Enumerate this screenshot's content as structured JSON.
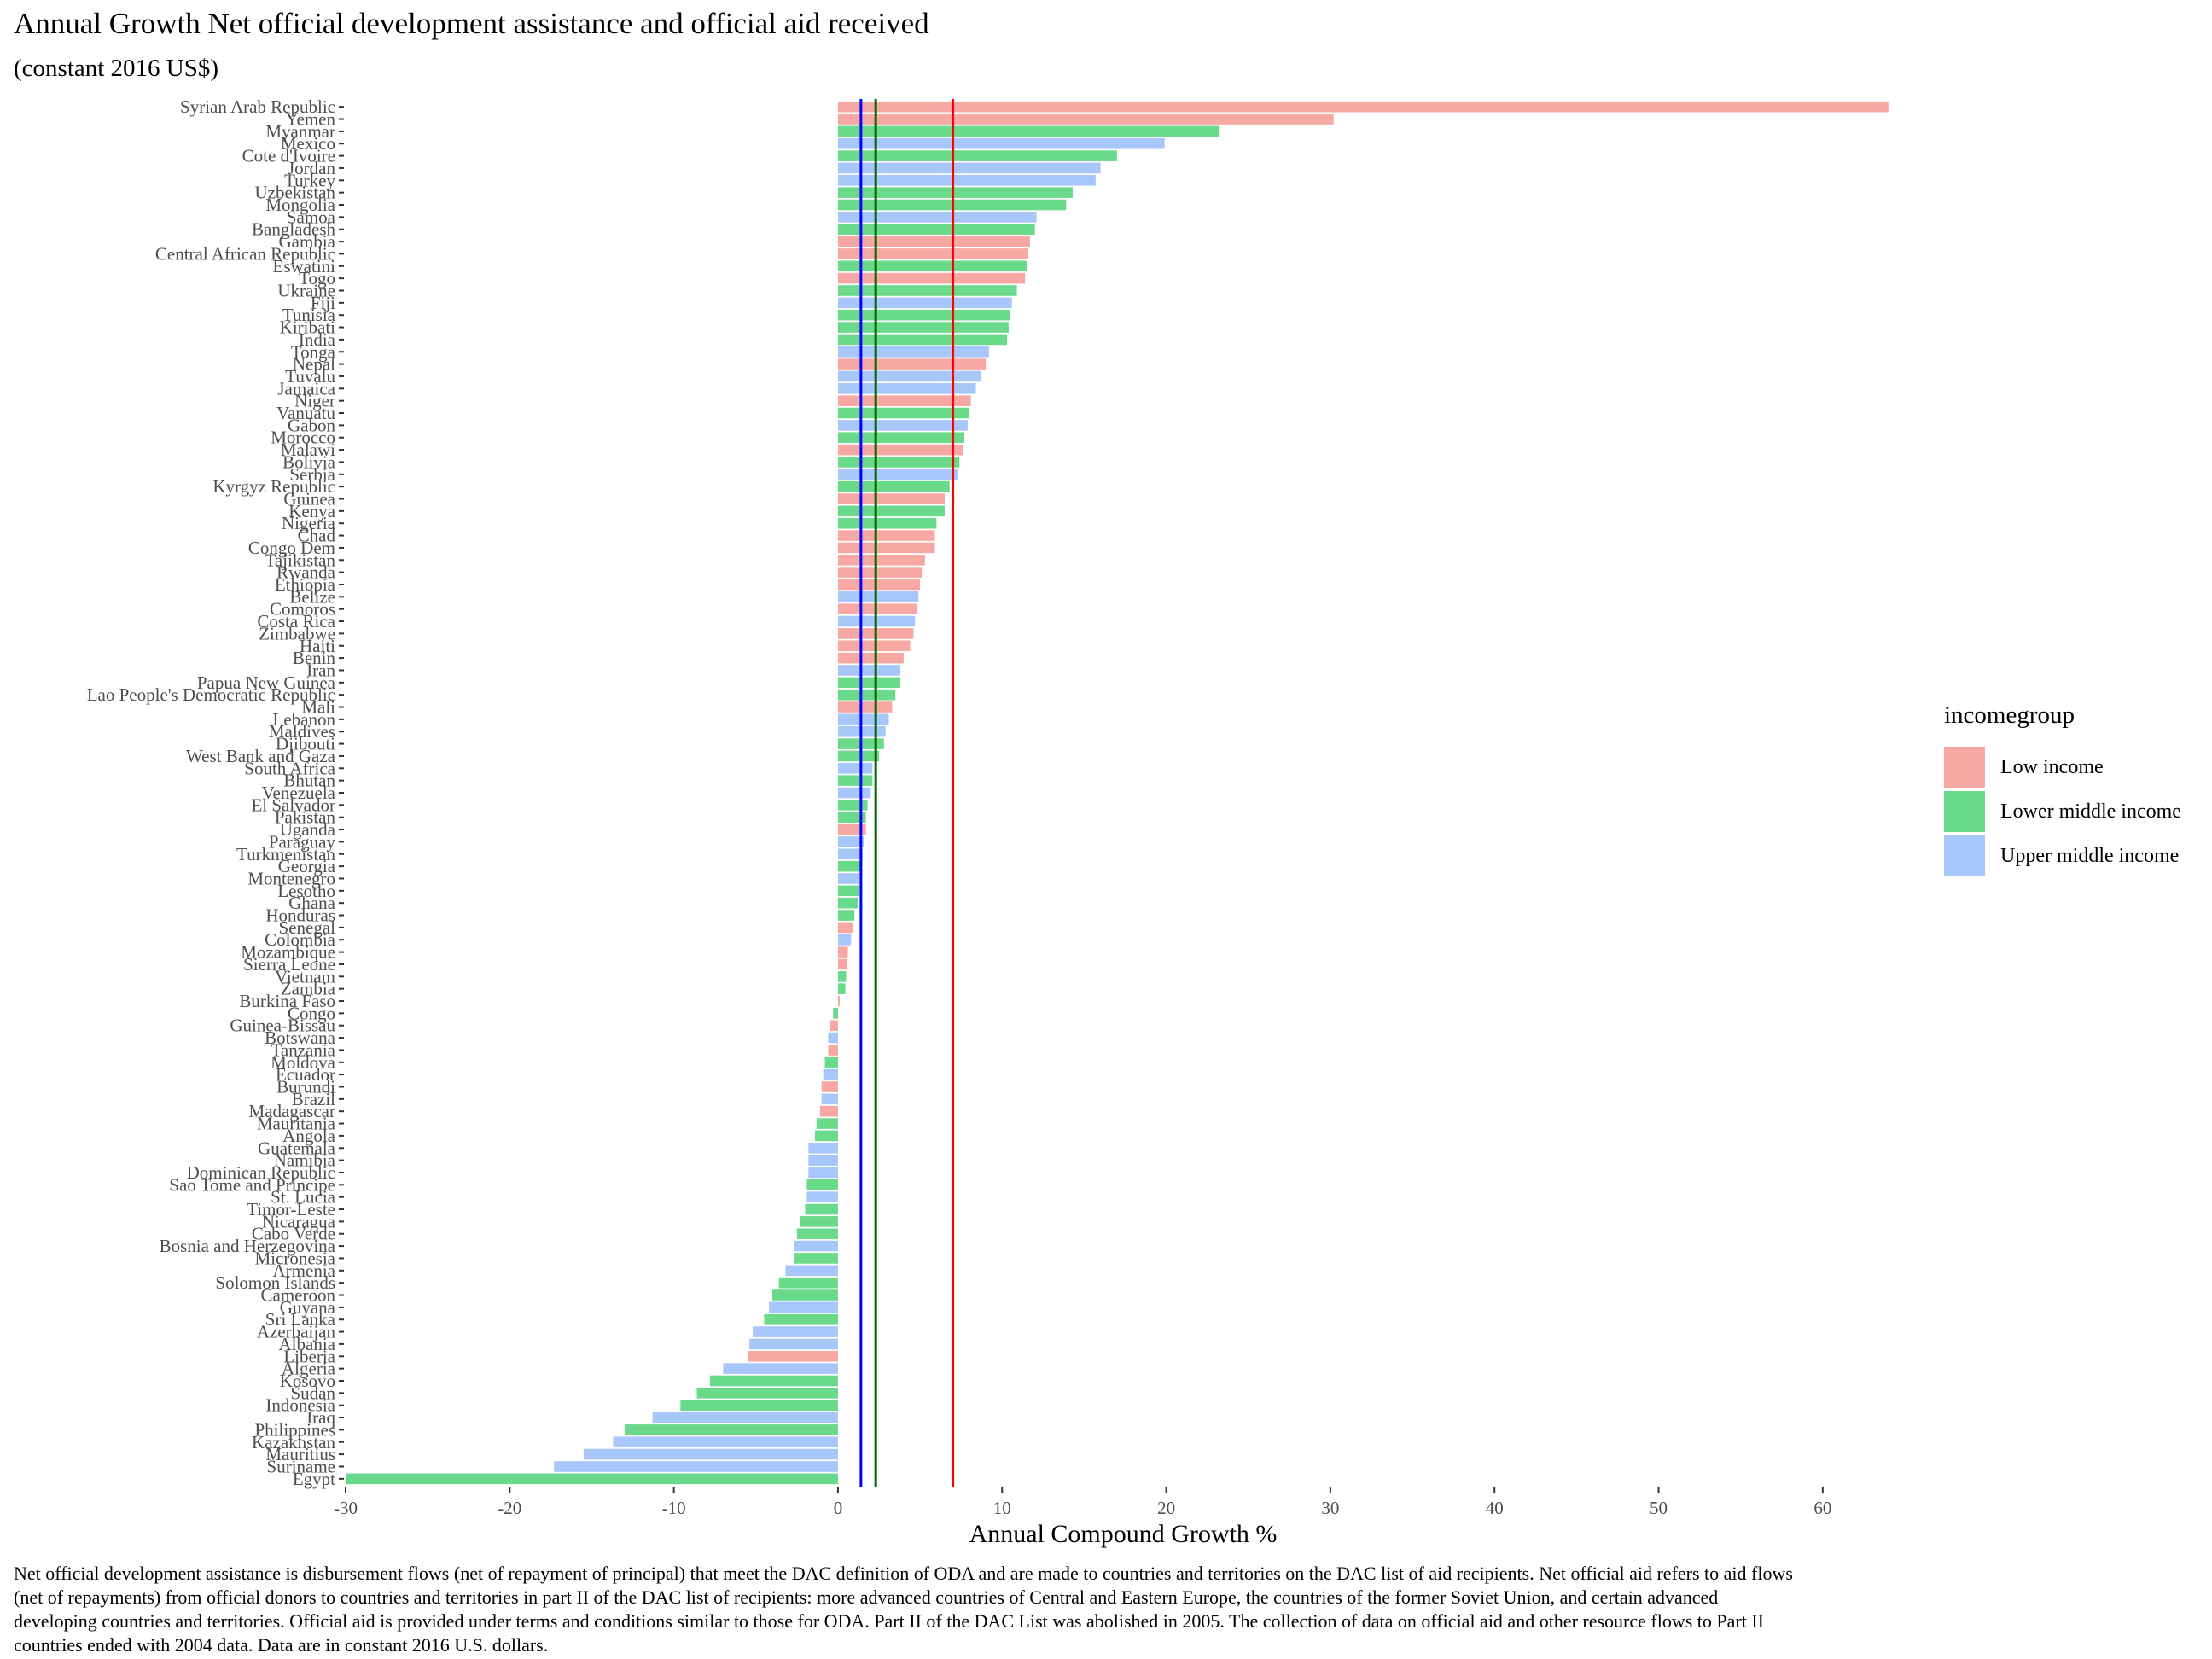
{
  "chart_data": {
    "type": "bar",
    "orientation": "horizontal",
    "title": "Annual Growth Net official development assistance and official aid received",
    "subtitle": "(constant 2016 US$)",
    "xlabel": "Annual Compound Growth %",
    "ylabel": "",
    "xlim": [
      -30,
      65
    ],
    "xticks": [
      -30,
      -20,
      -10,
      0,
      10,
      20,
      30,
      40,
      50,
      60
    ],
    "grid": false,
    "legend": {
      "title": "incomegroup",
      "position": "right",
      "entries": [
        {
          "name": "Low income",
          "color": "#F8A8A2"
        },
        {
          "name": "Lower middle income",
          "color": "#6BD98A"
        },
        {
          "name": "Upper middle income",
          "color": "#A7C6FA"
        }
      ]
    },
    "reference_lines": [
      {
        "value": 1.4,
        "color": "#0000FF"
      },
      {
        "value": 2.3,
        "color": "#006400"
      },
      {
        "value": 7.0,
        "color": "#FF0000"
      }
    ],
    "bars": [
      {
        "country": "Syrian Arab Republic",
        "group": "Low income",
        "value": 64.0
      },
      {
        "country": "Yemen",
        "group": "Low income",
        "value": 30.2
      },
      {
        "country": "Myanmar",
        "group": "Lower middle income",
        "value": 23.2
      },
      {
        "country": "Mexico",
        "group": "Upper middle income",
        "value": 19.9
      },
      {
        "country": "Cote d'Ivoire",
        "group": "Lower middle income",
        "value": 17.0
      },
      {
        "country": "Jordan",
        "group": "Upper middle income",
        "value": 16.0
      },
      {
        "country": "Turkey",
        "group": "Upper middle income",
        "value": 15.7
      },
      {
        "country": "Uzbekistan",
        "group": "Lower middle income",
        "value": 14.3
      },
      {
        "country": "Mongolia",
        "group": "Lower middle income",
        "value": 13.9
      },
      {
        "country": "Samoa",
        "group": "Upper middle income",
        "value": 12.1
      },
      {
        "country": "Bangladesh",
        "group": "Lower middle income",
        "value": 12.0
      },
      {
        "country": "Gambia",
        "group": "Low income",
        "value": 11.7
      },
      {
        "country": "Central African Republic",
        "group": "Low income",
        "value": 11.6
      },
      {
        "country": "Eswatini",
        "group": "Lower middle income",
        "value": 11.5
      },
      {
        "country": "Togo",
        "group": "Low income",
        "value": 11.4
      },
      {
        "country": "Ukraine",
        "group": "Lower middle income",
        "value": 10.9
      },
      {
        "country": "Fiji",
        "group": "Upper middle income",
        "value": 10.6
      },
      {
        "country": "Tunisia",
        "group": "Lower middle income",
        "value": 10.5
      },
      {
        "country": "Kiribati",
        "group": "Lower middle income",
        "value": 10.4
      },
      {
        "country": "India",
        "group": "Lower middle income",
        "value": 10.3
      },
      {
        "country": "Tonga",
        "group": "Upper middle income",
        "value": 9.2
      },
      {
        "country": "Nepal",
        "group": "Low income",
        "value": 9.0
      },
      {
        "country": "Tuvalu",
        "group": "Upper middle income",
        "value": 8.7
      },
      {
        "country": "Jamaica",
        "group": "Upper middle income",
        "value": 8.4
      },
      {
        "country": "Niger",
        "group": "Low income",
        "value": 8.1
      },
      {
        "country": "Vanuatu",
        "group": "Lower middle income",
        "value": 8.0
      },
      {
        "country": "Gabon",
        "group": "Upper middle income",
        "value": 7.9
      },
      {
        "country": "Morocco",
        "group": "Lower middle income",
        "value": 7.7
      },
      {
        "country": "Malawi",
        "group": "Low income",
        "value": 7.6
      },
      {
        "country": "Bolivia",
        "group": "Lower middle income",
        "value": 7.4
      },
      {
        "country": "Serbia",
        "group": "Upper middle income",
        "value": 7.3
      },
      {
        "country": "Kyrgyz Republic",
        "group": "Lower middle income",
        "value": 6.8
      },
      {
        "country": "Guinea",
        "group": "Low income",
        "value": 6.5
      },
      {
        "country": "Kenya",
        "group": "Lower middle income",
        "value": 6.5
      },
      {
        "country": "Nigeria",
        "group": "Lower middle income",
        "value": 6.0
      },
      {
        "country": "Chad",
        "group": "Low income",
        "value": 5.9
      },
      {
        "country": "Congo Dem",
        "group": "Low income",
        "value": 5.9
      },
      {
        "country": "Tajikistan",
        "group": "Low income",
        "value": 5.3
      },
      {
        "country": "Rwanda",
        "group": "Low income",
        "value": 5.1
      },
      {
        "country": "Ethiopia",
        "group": "Low income",
        "value": 5.0
      },
      {
        "country": "Belize",
        "group": "Upper middle income",
        "value": 4.9
      },
      {
        "country": "Comoros",
        "group": "Low income",
        "value": 4.8
      },
      {
        "country": "Costa Rica",
        "group": "Upper middle income",
        "value": 4.7
      },
      {
        "country": "Zimbabwe",
        "group": "Low income",
        "value": 4.6
      },
      {
        "country": "Haiti",
        "group": "Low income",
        "value": 4.4
      },
      {
        "country": "Benin",
        "group": "Low income",
        "value": 4.0
      },
      {
        "country": "Iran",
        "group": "Upper middle income",
        "value": 3.8
      },
      {
        "country": "Papua New Guinea",
        "group": "Lower middle income",
        "value": 3.8
      },
      {
        "country": "Lao People's Democratic Republic",
        "group": "Lower middle income",
        "value": 3.5
      },
      {
        "country": "Mali",
        "group": "Low income",
        "value": 3.3
      },
      {
        "country": "Lebanon",
        "group": "Upper middle income",
        "value": 3.1
      },
      {
        "country": "Maldives",
        "group": "Upper middle income",
        "value": 2.9
      },
      {
        "country": "Djibouti",
        "group": "Lower middle income",
        "value": 2.8
      },
      {
        "country": "West Bank and Gaza",
        "group": "Lower middle income",
        "value": 2.5
      },
      {
        "country": "South Africa",
        "group": "Upper middle income",
        "value": 2.1
      },
      {
        "country": "Bhutan",
        "group": "Lower middle income",
        "value": 2.1
      },
      {
        "country": "Venezuela",
        "group": "Upper middle income",
        "value": 2.0
      },
      {
        "country": "El Salvador",
        "group": "Lower middle income",
        "value": 1.8
      },
      {
        "country": "Pakistan",
        "group": "Lower middle income",
        "value": 1.7
      },
      {
        "country": "Uganda",
        "group": "Low income",
        "value": 1.7
      },
      {
        "country": "Paraguay",
        "group": "Upper middle income",
        "value": 1.6
      },
      {
        "country": "Turkmenistan",
        "group": "Upper middle income",
        "value": 1.5
      },
      {
        "country": "Georgia",
        "group": "Lower middle income",
        "value": 1.4
      },
      {
        "country": "Montenegro",
        "group": "Upper middle income",
        "value": 1.3
      },
      {
        "country": "Lesotho",
        "group": "Lower middle income",
        "value": 1.3
      },
      {
        "country": "Ghana",
        "group": "Lower middle income",
        "value": 1.2
      },
      {
        "country": "Honduras",
        "group": "Lower middle income",
        "value": 1.0
      },
      {
        "country": "Senegal",
        "group": "Low income",
        "value": 0.9
      },
      {
        "country": "Colombia",
        "group": "Upper middle income",
        "value": 0.8
      },
      {
        "country": "Mozambique",
        "group": "Low income",
        "value": 0.6
      },
      {
        "country": "Sierra Leone",
        "group": "Low income",
        "value": 0.55
      },
      {
        "country": "Vietnam",
        "group": "Lower middle income",
        "value": 0.5
      },
      {
        "country": "Zambia",
        "group": "Lower middle income",
        "value": 0.45
      },
      {
        "country": "Burkina Faso",
        "group": "Low income",
        "value": 0.1
      },
      {
        "country": "Congo",
        "group": "Lower middle income",
        "value": -0.3
      },
      {
        "country": "Guinea-Bissau",
        "group": "Low income",
        "value": -0.5
      },
      {
        "country": "Botswana",
        "group": "Upper middle income",
        "value": -0.6
      },
      {
        "country": "Tanzania",
        "group": "Low income",
        "value": -0.6
      },
      {
        "country": "Moldova",
        "group": "Lower middle income",
        "value": -0.8
      },
      {
        "country": "Ecuador",
        "group": "Upper middle income",
        "value": -0.9
      },
      {
        "country": "Burundi",
        "group": "Low income",
        "value": -1.0
      },
      {
        "country": "Brazil",
        "group": "Upper middle income",
        "value": -1.0
      },
      {
        "country": "Madagascar",
        "group": "Low income",
        "value": -1.1
      },
      {
        "country": "Mauritania",
        "group": "Lower middle income",
        "value": -1.3
      },
      {
        "country": "Angola",
        "group": "Lower middle income",
        "value": -1.4
      },
      {
        "country": "Guatemala",
        "group": "Upper middle income",
        "value": -1.8
      },
      {
        "country": "Namibia",
        "group": "Upper middle income",
        "value": -1.8
      },
      {
        "country": "Dominican Republic",
        "group": "Upper middle income",
        "value": -1.8
      },
      {
        "country": "Sao Tome and Principe",
        "group": "Lower middle income",
        "value": -1.9
      },
      {
        "country": "St. Lucia",
        "group": "Upper middle income",
        "value": -1.9
      },
      {
        "country": "Timor-Leste",
        "group": "Lower middle income",
        "value": -2.0
      },
      {
        "country": "Nicaragua",
        "group": "Lower middle income",
        "value": -2.3
      },
      {
        "country": "Cabo Verde",
        "group": "Lower middle income",
        "value": -2.5
      },
      {
        "country": "Bosnia and Herzegovina",
        "group": "Upper middle income",
        "value": -2.7
      },
      {
        "country": "Micronesia",
        "group": "Lower middle income",
        "value": -2.7
      },
      {
        "country": "Armenia",
        "group": "Upper middle income",
        "value": -3.2
      },
      {
        "country": "Solomon Islands",
        "group": "Lower middle income",
        "value": -3.6
      },
      {
        "country": "Cameroon",
        "group": "Lower middle income",
        "value": -4.0
      },
      {
        "country": "Guyana",
        "group": "Upper middle income",
        "value": -4.2
      },
      {
        "country": "Sri Lanka",
        "group": "Lower middle income",
        "value": -4.5
      },
      {
        "country": "Azerbaijan",
        "group": "Upper middle income",
        "value": -5.2
      },
      {
        "country": "Albania",
        "group": "Upper middle income",
        "value": -5.4
      },
      {
        "country": "Liberia",
        "group": "Low income",
        "value": -5.5
      },
      {
        "country": "Algeria",
        "group": "Upper middle income",
        "value": -7.0
      },
      {
        "country": "Kosovo",
        "group": "Lower middle income",
        "value": -7.8
      },
      {
        "country": "Sudan",
        "group": "Lower middle income",
        "value": -8.6
      },
      {
        "country": "Indonesia",
        "group": "Lower middle income",
        "value": -9.6
      },
      {
        "country": "Iraq",
        "group": "Upper middle income",
        "value": -11.3
      },
      {
        "country": "Philippines",
        "group": "Lower middle income",
        "value": -13.0
      },
      {
        "country": "Kazakhstan",
        "group": "Upper middle income",
        "value": -13.7
      },
      {
        "country": "Mauritius",
        "group": "Upper middle income",
        "value": -15.5
      },
      {
        "country": "Suriname",
        "group": "Upper middle income",
        "value": -17.3
      },
      {
        "country": "Egypt",
        "group": "Lower middle income",
        "value": -30.0
      }
    ]
  },
  "caption": "Net official development assistance is disbursement flows (net of repayment of principal) that meet the DAC definition of ODA and are made to countries and territories on the DAC list of aid recipients. Net official aid refers to aid flows (net of repayments) from official donors to countries and territories in part II of the DAC list of recipients: more advanced countries of Central and Eastern Europe, the countries of the former Soviet Union, and certain advanced developing countries and territories. Official aid is provided under terms and conditions similar to those for ODA. Part II of the DAC List was abolished in 2005. The collection of data on official aid and other resource flows to Part II countries ended with 2004 data. Data are in constant 2016 U.S. dollars."
}
